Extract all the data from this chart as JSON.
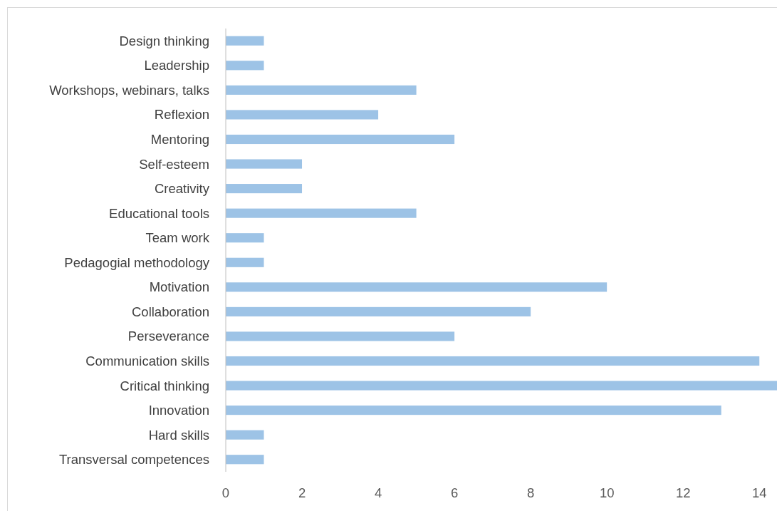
{
  "chart_data": {
    "type": "bar",
    "orientation": "horizontal",
    "categories": [
      "Design thinking",
      "Leadership",
      "Workshops, webinars, talks",
      "Reflexion",
      "Mentoring ",
      "Self-esteem",
      "Creativity",
      "Educational tools",
      "Team work",
      "Pedagogial methodology",
      "Motivation",
      "Collaboration",
      "Perseverance",
      "Communication skills",
      "Critical thinking",
      "Innovation",
      "Hard skills",
      "Transversal competences"
    ],
    "values": [
      1,
      1,
      5,
      4,
      6,
      2,
      2,
      5,
      1,
      1,
      10,
      8,
      6,
      14,
      14.5,
      13,
      1,
      1
    ],
    "color": "#9dc3e6",
    "xlim": [
      0,
      14.5
    ],
    "xticks": [
      0,
      2,
      4,
      6,
      8,
      10,
      12,
      14
    ],
    "grid": false
  }
}
